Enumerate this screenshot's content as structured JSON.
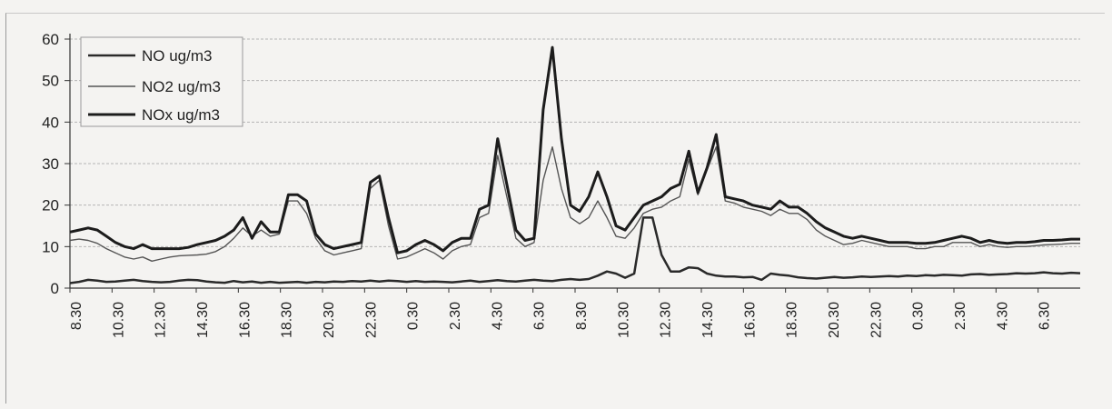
{
  "chart_data": {
    "type": "line",
    "title": "",
    "xlabel": "",
    "ylabel": "",
    "ylim": [
      0,
      60
    ],
    "yticks": [
      0,
      10,
      20,
      30,
      40,
      50,
      60
    ],
    "grid": "horizontal",
    "legend_position": "top-left",
    "tick_labels": [
      "8.30",
      "10.30",
      "12.30",
      "14.30",
      "16.30",
      "18.30",
      "20.30",
      "22.30",
      "0.30",
      "2.30",
      "4.30",
      "6.30",
      "8.30",
      "10.30",
      "12.30",
      "14.30",
      "16.30",
      "18.30",
      "20.30",
      "22.30",
      "0.30",
      "2.30",
      "4.30",
      "6.30"
    ],
    "series": [
      {
        "name": "NO ug/m3",
        "color": "#2a2a2a",
        "values": [
          1.2,
          1.5,
          2.0,
          1.8,
          1.5,
          1.6,
          1.8,
          2.0,
          1.7,
          1.5,
          1.4,
          1.5,
          1.8,
          2.0,
          1.9,
          1.6,
          1.4,
          1.3,
          1.7,
          1.4,
          1.6,
          1.3,
          1.5,
          1.3,
          1.4,
          1.5,
          1.3,
          1.5,
          1.4,
          1.6,
          1.5,
          1.7,
          1.6,
          1.8,
          1.6,
          1.8,
          1.7,
          1.5,
          1.7,
          1.5,
          1.6,
          1.5,
          1.4,
          1.6,
          1.8,
          1.5,
          1.7,
          1.9,
          1.7,
          1.6,
          1.8,
          2.0,
          1.8,
          1.7,
          2.0,
          2.2,
          2.0,
          2.2,
          3.0,
          4.0,
          3.5,
          2.5,
          3.5,
          17.0,
          17.0,
          8.0,
          4.0,
          4.0,
          5.0,
          4.8,
          3.5,
          3.0,
          2.8,
          2.8,
          2.6,
          2.7,
          2.0,
          3.5,
          3.2,
          3.0,
          2.6,
          2.4,
          2.3,
          2.5,
          2.7,
          2.5,
          2.6,
          2.8,
          2.7,
          2.8,
          2.9,
          2.8,
          3.0,
          2.9,
          3.1,
          3.0,
          3.2,
          3.1,
          3.0,
          3.3,
          3.4,
          3.2,
          3.3,
          3.4,
          3.6,
          3.5,
          3.6,
          3.8,
          3.6,
          3.5,
          3.7,
          3.6
        ]
      },
      {
        "name": "NO2 ug/m3",
        "color": "#555555",
        "values": [
          11.5,
          11.8,
          11.5,
          10.8,
          9.5,
          8.5,
          7.5,
          7.0,
          7.5,
          6.5,
          7.0,
          7.5,
          7.8,
          7.9,
          8.0,
          8.2,
          8.8,
          10.0,
          12.0,
          14.5,
          12.5,
          14.0,
          12.5,
          13.0,
          21.0,
          21.0,
          18.0,
          12.0,
          9.0,
          8.0,
          8.5,
          9.0,
          9.5,
          24.0,
          26.0,
          15.0,
          7.0,
          7.5,
          8.5,
          9.5,
          8.5,
          7.0,
          9.0,
          10.0,
          10.5,
          17.0,
          18.0,
          32.0,
          22.0,
          12.0,
          10.0,
          11.0,
          26.0,
          34.0,
          24.0,
          17.0,
          15.5,
          17.0,
          21.0,
          17.0,
          12.5,
          12.0,
          14.5,
          18.0,
          19.0,
          19.5,
          21.0,
          22.0,
          31.0,
          22.5,
          28.5,
          34.0,
          21.0,
          20.5,
          19.5,
          19.0,
          18.5,
          17.5,
          19.0,
          18.0,
          18.0,
          16.5,
          14.0,
          12.5,
          11.5,
          10.5,
          10.8,
          11.5,
          11.0,
          10.5,
          10.0,
          10.0,
          10.0,
          9.5,
          9.5,
          10.0,
          10.0,
          11.0,
          11.0,
          11.0,
          10.0,
          10.5,
          10.0,
          9.8,
          10.0,
          10.0,
          10.2,
          10.4,
          10.5,
          10.6,
          10.8,
          10.8
        ]
      },
      {
        "name": "NOx ug/m3",
        "color": "#1c1c1c",
        "values": [
          13.5,
          14.0,
          14.5,
          14.0,
          12.5,
          11.0,
          10.0,
          9.5,
          10.5,
          9.5,
          9.5,
          9.5,
          9.5,
          9.8,
          10.5,
          11.0,
          11.5,
          12.5,
          14.0,
          17.0,
          12.0,
          16.0,
          13.5,
          13.5,
          22.5,
          22.5,
          21.0,
          13.0,
          10.5,
          9.5,
          10.0,
          10.5,
          11.0,
          25.5,
          27.0,
          17.0,
          8.5,
          9.0,
          10.5,
          11.5,
          10.5,
          9.0,
          11.0,
          12.0,
          12.0,
          19.0,
          20.0,
          36.0,
          25.0,
          14.0,
          11.5,
          12.0,
          43.0,
          58.0,
          36.0,
          20.0,
          18.5,
          22.0,
          28.0,
          22.0,
          15.0,
          14.0,
          17.0,
          20.0,
          21.0,
          22.0,
          24.0,
          25.0,
          33.0,
          23.0,
          29.0,
          37.0,
          22.0,
          21.5,
          21.0,
          20.0,
          19.5,
          19.0,
          21.0,
          19.5,
          19.5,
          18.0,
          16.0,
          14.5,
          13.5,
          12.5,
          12.0,
          12.5,
          12.0,
          11.5,
          11.0,
          11.0,
          11.0,
          10.8,
          10.8,
          11.0,
          11.5,
          12.0,
          12.5,
          12.0,
          11.0,
          11.5,
          11.0,
          10.8,
          11.0,
          11.0,
          11.2,
          11.5,
          11.5,
          11.6,
          11.8,
          11.8
        ]
      }
    ]
  }
}
